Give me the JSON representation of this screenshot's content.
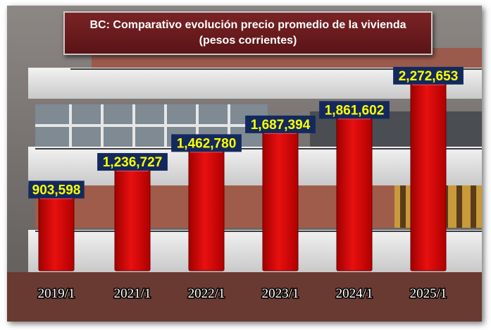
{
  "chart_data": {
    "type": "bar",
    "title": "BC: Comparativo evolución precio promedio de la vivienda",
    "subtitle": "(pesos corrientes)",
    "categories": [
      "2019/1",
      "2021/1",
      "2022/1",
      "2023/1",
      "2024/1",
      "2025/1"
    ],
    "values": [
      903598,
      1236727,
      1462780,
      1687394,
      1861602,
      2272653
    ],
    "value_labels": [
      "903,598",
      "1,236,727",
      "1,462,780",
      "1,687,394",
      "1,861,602",
      "2,272,653"
    ],
    "xlabel": "",
    "ylabel": "",
    "ylim": [
      0,
      2500000
    ],
    "grid": false,
    "colors": {
      "bar": "#d40000",
      "label_bg": "#13295e",
      "label_text": "#ffff00",
      "title_bg": "#6b1b1d"
    }
  }
}
